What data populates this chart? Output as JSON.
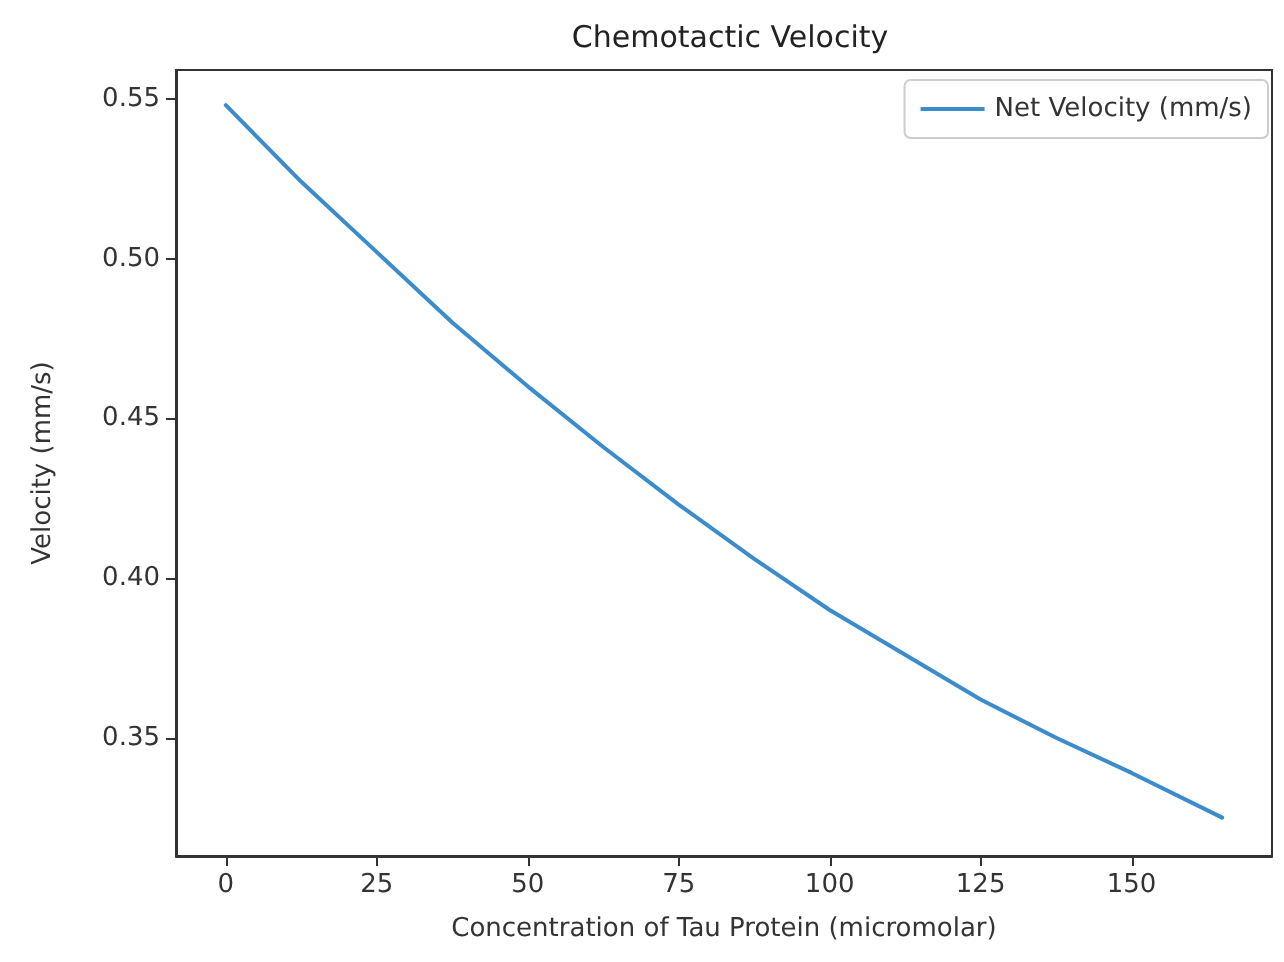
{
  "chart_data": {
    "type": "line",
    "title": "Chemotactic Velocity",
    "xlabel": "Concentration of Tau Protein (micromolar)",
    "ylabel": "Velocity (mm/s)",
    "x": [
      0,
      12.5,
      25,
      37.5,
      50,
      62.5,
      75,
      87.5,
      100,
      112.5,
      125,
      137.5,
      150,
      165
    ],
    "series": [
      {
        "name": "Net Velocity (mm/s)",
        "color": "#3a8ccc",
        "values": [
          0.548,
          0.524,
          0.502,
          0.48,
          0.46,
          0.441,
          0.423,
          0.406,
          0.39,
          0.376,
          0.362,
          0.35,
          0.339,
          0.325
        ]
      }
    ],
    "xlim": [
      -8.25,
      173.25
    ],
    "xticks": [
      0,
      25,
      50,
      75,
      100,
      125,
      150
    ],
    "ylim": [
      0.313,
      0.559
    ],
    "yticks": [
      0.35,
      {
        "value": 0.4,
        "label": "0.40"
      },
      0.45,
      {
        "value": 0.5,
        "label": "0.50"
      },
      0.55
    ],
    "legend": "top right",
    "grid": false,
    "marker": "none",
    "line_style": "solid"
  }
}
